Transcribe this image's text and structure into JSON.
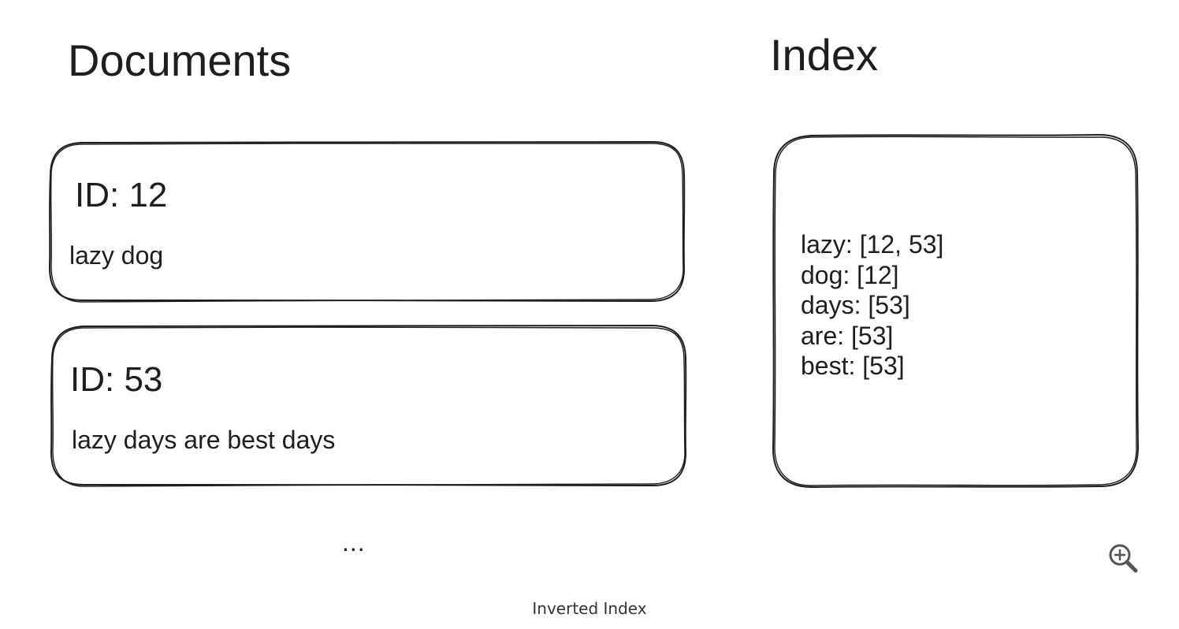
{
  "diagram": {
    "documents_heading": "Documents",
    "index_heading": "Index",
    "documents": [
      {
        "id_label": "ID: 12",
        "text": "lazy dog"
      },
      {
        "id_label": "ID: 53",
        "text": "lazy days are best days"
      }
    ],
    "index_entries": [
      "lazy: [12, 53]",
      "dog: [12]",
      "days: [53]",
      "are: [53]",
      "best: [53]"
    ],
    "more_documents": "...",
    "caption": "Inverted Index"
  },
  "controls": {
    "zoom_icon": "magnifier-plus-icon"
  },
  "colors": {
    "stroke": "#1e1e1e",
    "background": "#ffffff",
    "caption": "#333333",
    "zoom_icon": "#555555"
  }
}
